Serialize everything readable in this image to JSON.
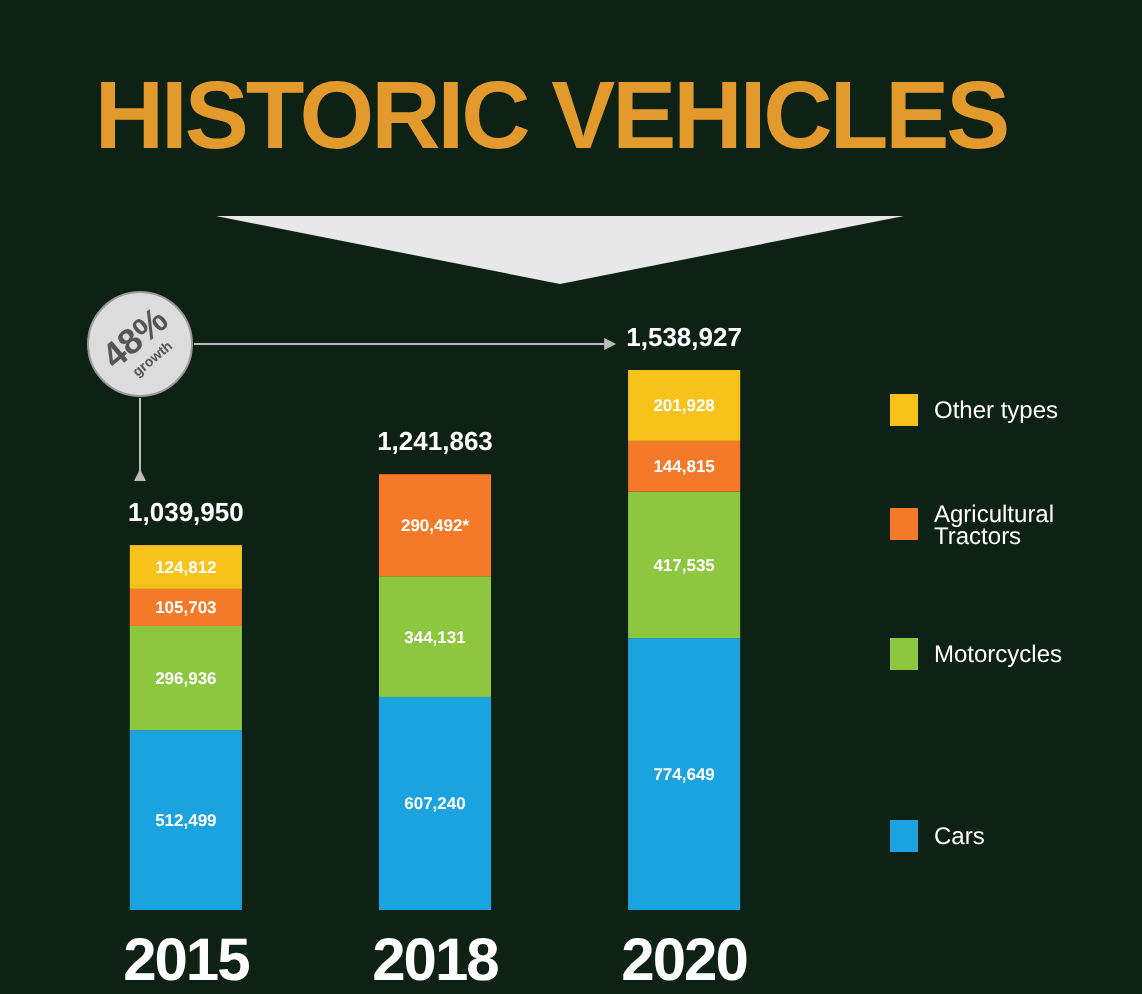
{
  "chart_data": {
    "type": "bar",
    "stacked": true,
    "title": "HISTORIC VEHICLES",
    "categories": [
      "2015",
      "2018",
      "2020"
    ],
    "series": [
      {
        "name": "Cars",
        "color": "#1ba3e0",
        "values": [
          512499,
          607240,
          774649
        ],
        "value_labels": [
          "512,499",
          "607,240",
          "774,649"
        ]
      },
      {
        "name": "Motorcycles",
        "color": "#8dc63f",
        "values": [
          296936,
          344131,
          417535
        ],
        "value_labels": [
          "296,936",
          "344,131",
          "417,535"
        ]
      },
      {
        "name": "Agricultural Tractors",
        "color": "#f47a2a",
        "values": [
          105703,
          290492,
          144815
        ],
        "value_labels": [
          "105,703",
          "290,492*",
          "144,815"
        ]
      },
      {
        "name": "Other types",
        "color": "#f7c21a",
        "values": [
          124812,
          null,
          201928
        ],
        "value_labels": [
          "124,812",
          null,
          "201,928"
        ]
      }
    ],
    "totals": [
      "1,039,950",
      "1,241,863",
      "1,538,927"
    ],
    "annotations": [
      "48% growth"
    ],
    "legend": "right"
  }
}
